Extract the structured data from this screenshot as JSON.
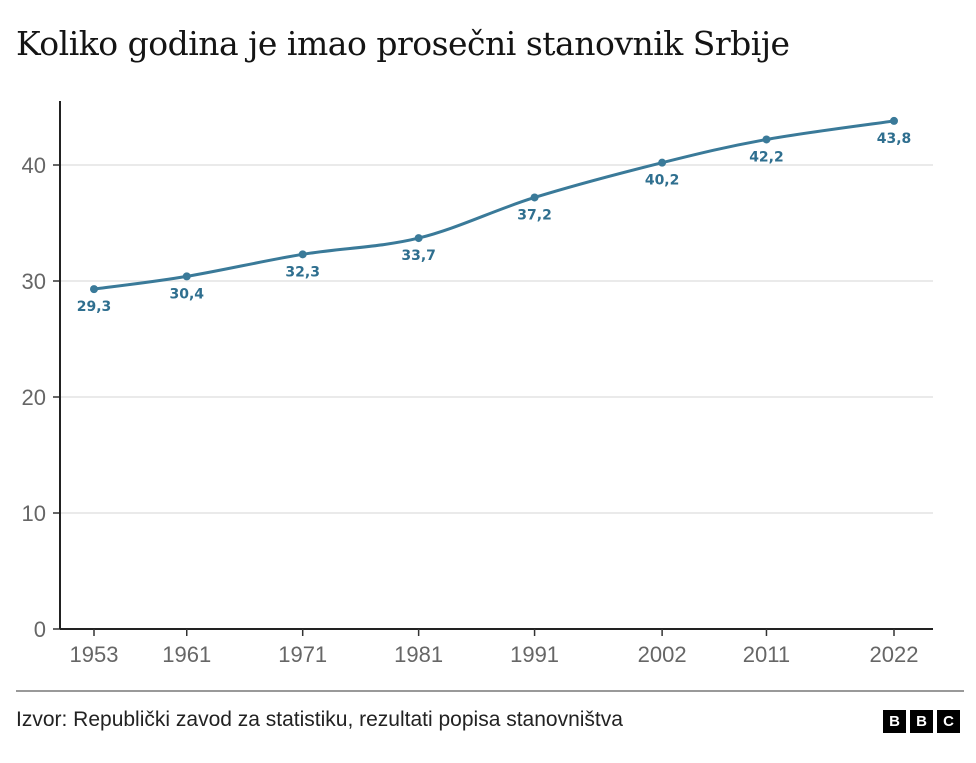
{
  "chart_data": {
    "type": "line",
    "title": "Koliko godina je imao prosečni stanovnik Srbije",
    "x": [
      1953,
      1961,
      1971,
      1981,
      1991,
      2002,
      2011,
      2022
    ],
    "x_labels": [
      "1953",
      "1961",
      "1971",
      "1981",
      "1991",
      "2002",
      "2011",
      "2022"
    ],
    "values": [
      29.3,
      30.4,
      32.3,
      33.7,
      37.2,
      40.2,
      42.2,
      43.8
    ],
    "data_labels": [
      "29,3",
      "30,4",
      "32,3",
      "33,7",
      "37,2",
      "40,2",
      "42,2",
      "43,8"
    ],
    "y_ticks": [
      0,
      10,
      20,
      30,
      40
    ],
    "ylim": [
      0,
      45.5
    ],
    "xlabel": "",
    "ylabel": "",
    "grid": "horizontal",
    "line_color": "#3a7a99",
    "label_color": "#2f6f8f"
  },
  "footer": {
    "source": "Izvor: Republički zavod za statistiku, rezultati popisa stanovništva",
    "logo": [
      "B",
      "B",
      "C"
    ]
  }
}
